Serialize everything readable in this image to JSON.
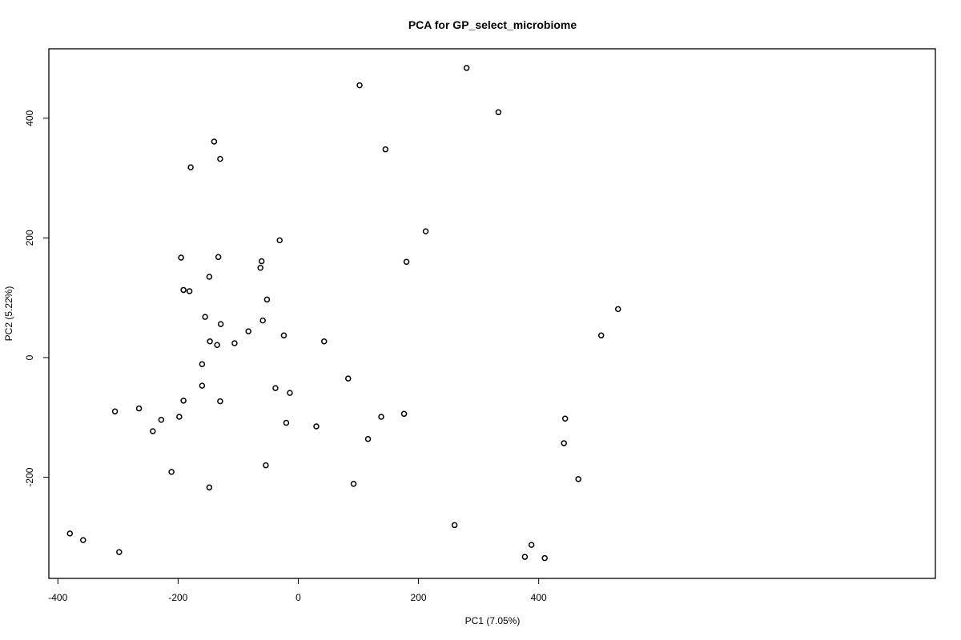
{
  "chart_data": {
    "type": "scatter",
    "title": "PCA for GP_select_microbiome",
    "xlabel": "PC1 (7.05%)",
    "ylabel": "PC2 (5.22%)",
    "xlim": [
      -415,
      1060
    ],
    "ylim": [
      -369,
      516
    ],
    "xticks": [
      -400,
      -200,
      0,
      200,
      400
    ],
    "yticks": [
      -200,
      0,
      200,
      400
    ],
    "grid": false,
    "legend": "none",
    "marker": "open-circle",
    "marker_color": "#000000",
    "points": [
      {
        "x": -380,
        "y": -294
      },
      {
        "x": -358,
        "y": -305
      },
      {
        "x": -298,
        "y": -325
      },
      {
        "x": -305,
        "y": -90
      },
      {
        "x": -265,
        "y": -85
      },
      {
        "x": -242,
        "y": -123
      },
      {
        "x": -228,
        "y": -104
      },
      {
        "x": -198,
        "y": -99
      },
      {
        "x": -211,
        "y": -191
      },
      {
        "x": -191,
        "y": -72
      },
      {
        "x": -148,
        "y": -217
      },
      {
        "x": -130,
        "y": -73
      },
      {
        "x": -160,
        "y": -47
      },
      {
        "x": -160,
        "y": -11
      },
      {
        "x": -147,
        "y": 27
      },
      {
        "x": -135,
        "y": 21
      },
      {
        "x": -155,
        "y": 68
      },
      {
        "x": -129,
        "y": 56
      },
      {
        "x": -106,
        "y": 24
      },
      {
        "x": -83,
        "y": 44
      },
      {
        "x": -59,
        "y": 62
      },
      {
        "x": -52,
        "y": 97
      },
      {
        "x": -24,
        "y": 37
      },
      {
        "x": -38,
        "y": -51
      },
      {
        "x": -14,
        "y": -59
      },
      {
        "x": -20,
        "y": -109
      },
      {
        "x": -54,
        "y": -180
      },
      {
        "x": -191,
        "y": 113
      },
      {
        "x": -181,
        "y": 111
      },
      {
        "x": -148,
        "y": 135
      },
      {
        "x": -195,
        "y": 167
      },
      {
        "x": -133,
        "y": 168
      },
      {
        "x": -63,
        "y": 150
      },
      {
        "x": -61,
        "y": 161
      },
      {
        "x": -31,
        "y": 196
      },
      {
        "x": -179,
        "y": 318
      },
      {
        "x": -140,
        "y": 361
      },
      {
        "x": -130,
        "y": 332
      },
      {
        "x": 43,
        "y": 27
      },
      {
        "x": 30,
        "y": -115
      },
      {
        "x": 83,
        "y": -35
      },
      {
        "x": 92,
        "y": -211
      },
      {
        "x": 116,
        "y": -136
      },
      {
        "x": 138,
        "y": -99
      },
      {
        "x": 176,
        "y": -94
      },
      {
        "x": 180,
        "y": 160
      },
      {
        "x": 212,
        "y": 211
      },
      {
        "x": 145,
        "y": 348
      },
      {
        "x": 102,
        "y": 455
      },
      {
        "x": 280,
        "y": 484
      },
      {
        "x": 333,
        "y": 410
      },
      {
        "x": 260,
        "y": -280
      },
      {
        "x": 377,
        "y": -333
      },
      {
        "x": 388,
        "y": -313
      },
      {
        "x": 410,
        "y": -335
      },
      {
        "x": 442,
        "y": -143
      },
      {
        "x": 444,
        "y": -102
      },
      {
        "x": 466,
        "y": -203
      },
      {
        "x": 504,
        "y": 37
      },
      {
        "x": 532,
        "y": 81
      }
    ]
  }
}
